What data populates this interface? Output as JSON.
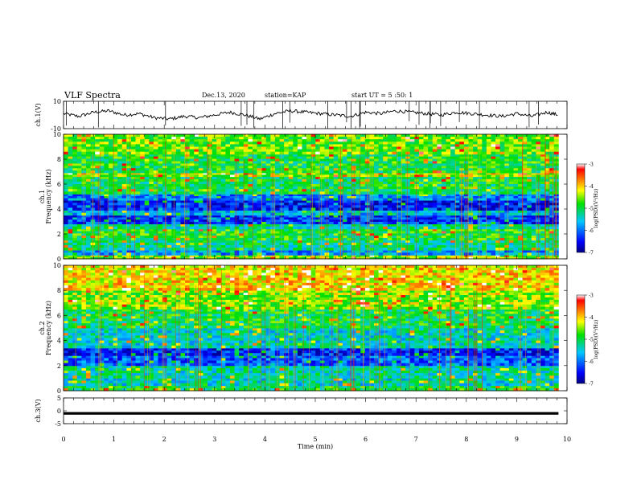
{
  "header": {
    "title": "VLF Spectra",
    "date": "Dec.13, 2020",
    "station": "station=KAP",
    "start": "start  UT =   5 :50: 1"
  },
  "chart_data": [
    {
      "type": "line",
      "panel": "ch1-waveform",
      "ylabel": "ch.1(V)",
      "ylim": [
        -10,
        10
      ],
      "yticks": [
        "10",
        "-10"
      ],
      "xlim": [
        0,
        10
      ],
      "x_extent_data": 9.83,
      "series": [
        {
          "x": [
            0,
            0.3,
            0.6,
            0.9,
            1.2,
            1.5,
            1.8,
            2.1,
            2.4,
            2.7,
            3.0,
            3.3,
            3.6,
            3.9,
            4.2,
            4.5,
            4.8,
            5.1,
            5.4,
            5.7,
            6.0,
            6.3,
            6.6,
            6.9,
            7.2,
            7.5,
            7.8,
            8.1,
            8.4,
            8.7,
            9.0,
            9.3,
            9.6,
            9.83
          ],
          "values": [
            1,
            -1,
            2,
            3,
            0,
            1,
            -2,
            -3,
            -1,
            -2,
            0,
            2,
            0,
            -3,
            1,
            3,
            2,
            1,
            0,
            -1,
            2,
            1,
            3,
            2,
            1,
            0,
            2,
            1,
            0,
            -1,
            1,
            -1,
            2,
            0
          ]
        }
      ],
      "line_color": "#000000"
    },
    {
      "type": "heatmap",
      "panel": "ch1-spectrogram",
      "ylabel_lines": [
        "ch.1",
        "Frequency (kHz)"
      ],
      "ylim": [
        0,
        10
      ],
      "yticks": [
        "0",
        "2",
        "4",
        "6",
        "8",
        "10"
      ],
      "xlim": [
        0,
        10
      ],
      "x_extent_data": 9.83,
      "band_profile": [
        {
          "f0": 0.0,
          "f1": 0.3,
          "level": -4.5
        },
        {
          "f0": 0.3,
          "f1": 0.7,
          "level": -5.8
        },
        {
          "f0": 0.7,
          "f1": 1.5,
          "level": -5.2
        },
        {
          "f0": 1.5,
          "f1": 2.4,
          "level": -4.9
        },
        {
          "f0": 2.4,
          "f1": 2.8,
          "level": -5.3
        },
        {
          "f0": 2.8,
          "f1": 3.5,
          "level": -6.3
        },
        {
          "f0": 3.5,
          "f1": 3.9,
          "level": -5.6
        },
        {
          "f0": 3.9,
          "f1": 4.7,
          "level": -6.4
        },
        {
          "f0": 4.7,
          "f1": 5.2,
          "level": -5.9
        },
        {
          "f0": 5.2,
          "f1": 6.6,
          "level": -5.0
        },
        {
          "f0": 6.6,
          "f1": 6.9,
          "level": -4.4
        },
        {
          "f0": 6.9,
          "f1": 8.4,
          "level": -4.9
        },
        {
          "f0": 8.4,
          "f1": 10.0,
          "level": -4.6
        }
      ],
      "colorbar": {
        "label": "log(PSD)(V²/Hz)",
        "range": [
          -7,
          -3
        ],
        "ticks": [
          "-3",
          "-4",
          "-5",
          "-6",
          "-7"
        ]
      }
    },
    {
      "type": "heatmap",
      "panel": "ch2-spectrogram",
      "ylabel_lines": [
        "ch.2",
        "Frequency (kHz)"
      ],
      "ylim": [
        0,
        10
      ],
      "yticks": [
        "0",
        "2",
        "4",
        "6",
        "8",
        "10"
      ],
      "xlim": [
        0,
        10
      ],
      "x_extent_data": 9.83,
      "band_profile": [
        {
          "f0": 0.0,
          "f1": 0.4,
          "level": -5.0
        },
        {
          "f0": 0.4,
          "f1": 1.0,
          "level": -5.4
        },
        {
          "f0": 1.0,
          "f1": 2.0,
          "level": -5.3
        },
        {
          "f0": 2.0,
          "f1": 2.8,
          "level": -6.1
        },
        {
          "f0": 2.8,
          "f1": 3.4,
          "level": -6.4
        },
        {
          "f0": 3.4,
          "f1": 5.0,
          "level": -5.4
        },
        {
          "f0": 5.0,
          "f1": 6.5,
          "level": -5.0
        },
        {
          "f0": 6.5,
          "f1": 8.0,
          "level": -4.5
        },
        {
          "f0": 8.0,
          "f1": 10.0,
          "level": -4.1
        }
      ],
      "colorbar": {
        "label": "log(PSD)(V²/Hz)",
        "range": [
          -7,
          -3
        ],
        "ticks": [
          "-3",
          "-4",
          "-5",
          "-6",
          "-7"
        ]
      }
    },
    {
      "type": "line",
      "panel": "ch3-waveform",
      "ylabel": "ch.3(V)",
      "ylim": [
        -5,
        5
      ],
      "yticks": [
        "5",
        "0",
        "-5"
      ],
      "xlim": [
        0,
        10
      ],
      "x_extent_data": 9.83,
      "series": [
        {
          "x": [
            0,
            9.83
          ],
          "values": [
            -1,
            -1
          ],
          "band_halfwidth": 0.5
        }
      ],
      "xlabel": "Time (min)",
      "xticks": [
        "0",
        "1",
        "2",
        "3",
        "4",
        "5",
        "6",
        "7",
        "8",
        "9",
        "10"
      ]
    }
  ]
}
